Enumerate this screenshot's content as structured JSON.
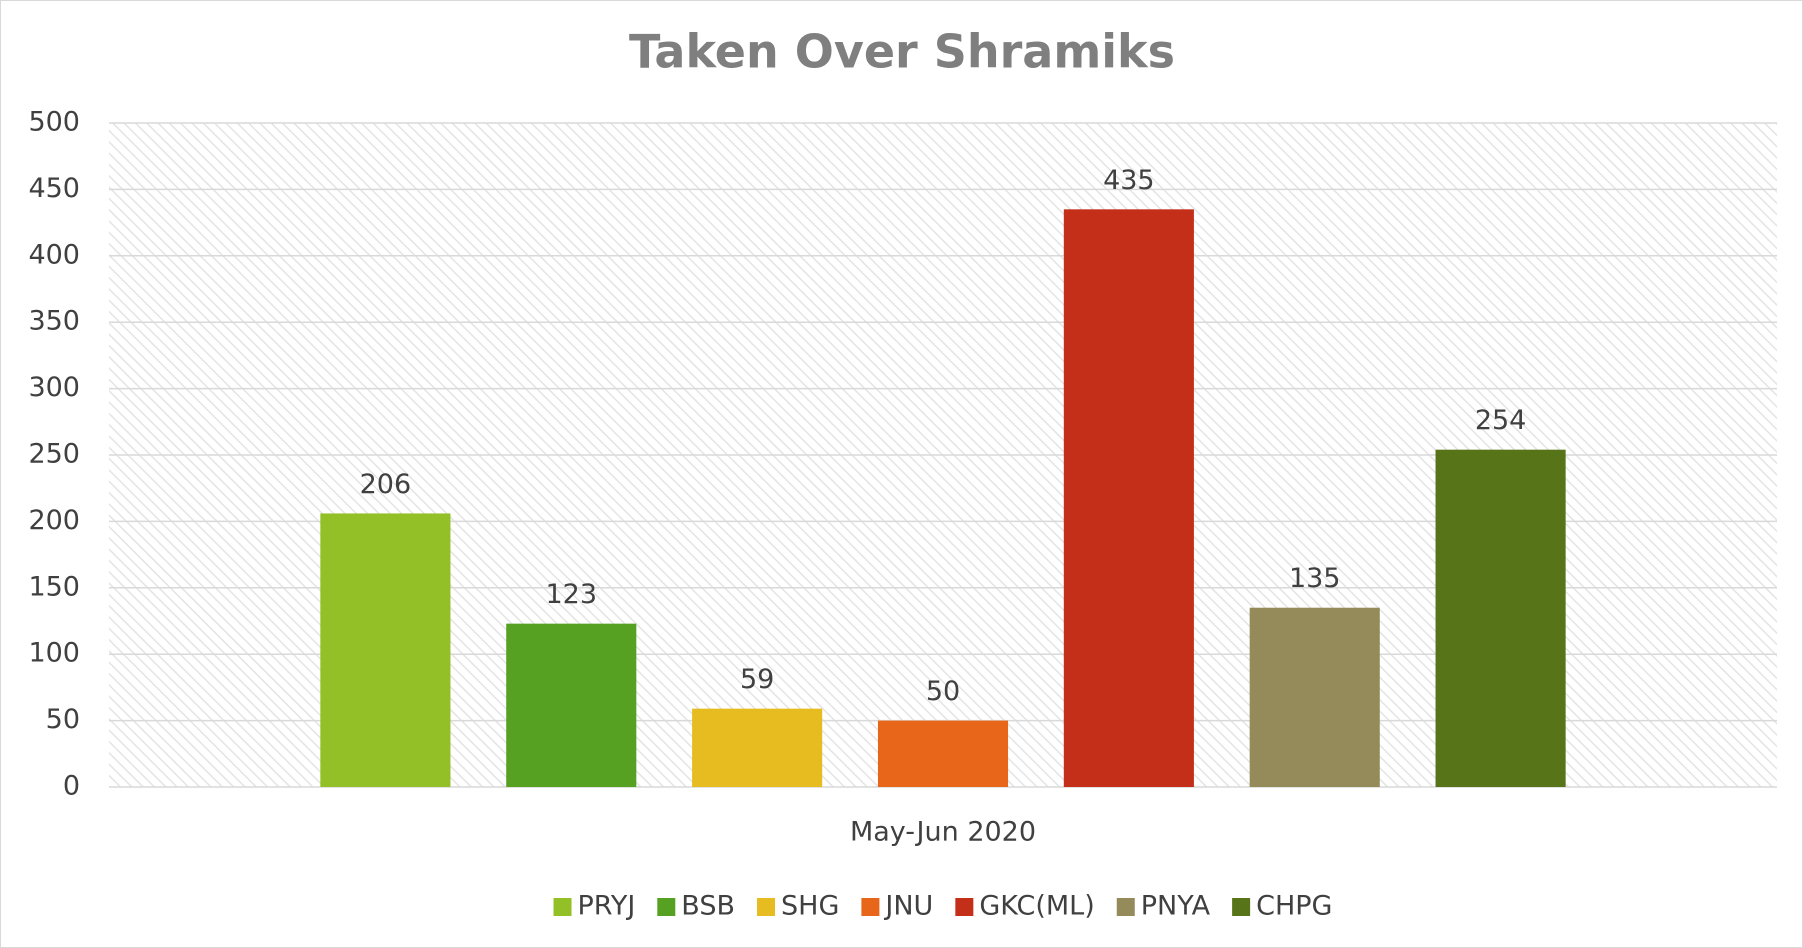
{
  "chart_data": {
    "type": "bar",
    "title": "Taken Over Shramiks",
    "categories": [
      "May-Jun 2020"
    ],
    "series": [
      {
        "name": "PRYJ",
        "color": "#92c026",
        "values": [
          206
        ]
      },
      {
        "name": "BSB",
        "color": "#56a022",
        "values": [
          123
        ]
      },
      {
        "name": "SHG",
        "color": "#e6bc20",
        "values": [
          59
        ]
      },
      {
        "name": "JNU",
        "color": "#e8661a",
        "values": [
          50
        ]
      },
      {
        "name": "GKC(ML)",
        "color": "#c42f1a",
        "values": [
          435
        ]
      },
      {
        "name": "PNYA",
        "color": "#948a5a",
        "values": [
          135
        ]
      },
      {
        "name": "CHPG",
        "color": "#577419",
        "values": [
          254
        ]
      }
    ],
    "ylim": [
      0,
      500
    ],
    "yticks": [
      0,
      50,
      100,
      150,
      200,
      250,
      300,
      350,
      400,
      450,
      500
    ],
    "grid": true,
    "legend": "bottom",
    "data_labels": true
  }
}
